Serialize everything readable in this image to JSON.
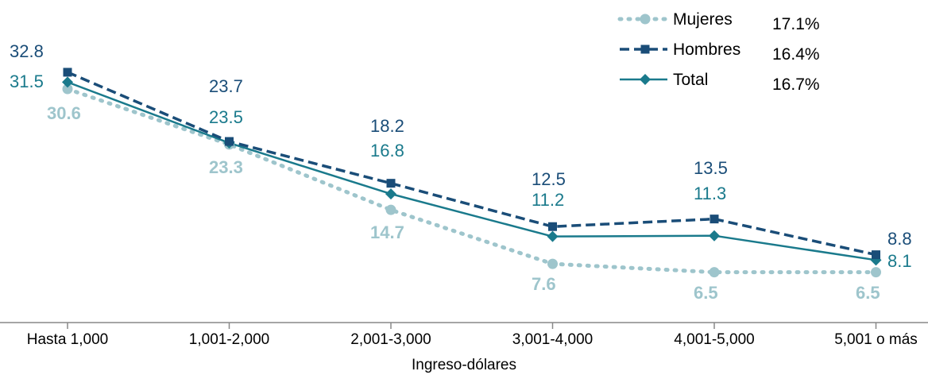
{
  "chart_data": {
    "type": "line",
    "categories": [
      "Hasta 1,000",
      "1,001-2,000",
      "2,001-3,000",
      "3,001-4,000",
      "4,001-5,000",
      "5,001 o más"
    ],
    "xlabel": "Ingreso-dólares",
    "ylabel": "",
    "grid": false,
    "legend_position": "top-right",
    "series": [
      {
        "name": "Mujeres",
        "legend_value": "17.1%",
        "style": "dotted",
        "marker": "circle",
        "color": "#9ec5cc",
        "values": [
          30.6,
          23.3,
          14.7,
          7.6,
          6.5,
          6.5
        ]
      },
      {
        "name": "Hombres",
        "legend_value": "16.4%",
        "style": "dashed",
        "marker": "square",
        "color": "#1a4d78",
        "values": [
          32.8,
          23.7,
          18.2,
          12.5,
          13.5,
          8.8
        ]
      },
      {
        "name": "Total",
        "legend_value": "16.7%",
        "style": "solid",
        "marker": "diamond",
        "color": "#1a7a8c",
        "values": [
          31.5,
          23.5,
          16.8,
          11.2,
          11.3,
          8.1
        ]
      }
    ]
  }
}
